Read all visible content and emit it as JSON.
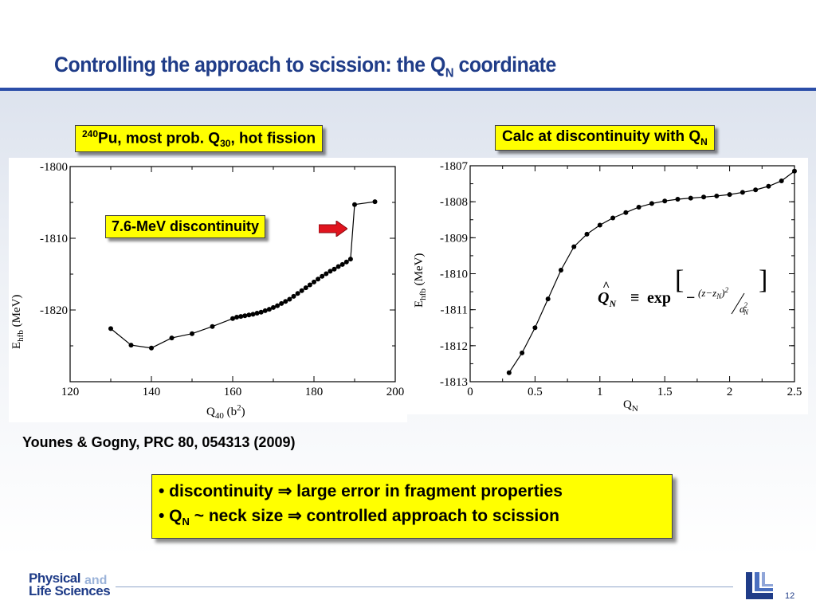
{
  "slide": {
    "title_prefix": "Controlling the approach to scission: the Q",
    "title_sub": "N",
    "title_suffix": " coordinate",
    "left_label": {
      "sup": "240",
      "text1": "Pu, most prob. Q",
      "sub": "30",
      "text2": ", hot fission"
    },
    "right_label": {
      "text": "Calc at discontinuity with Q",
      "sub": "N"
    },
    "callout": "7.6-MeV discontinuity",
    "citation": "Younes & Gogny, PRC 80, 054313 (2009)",
    "bullet1": {
      "text1": "• discontinuity ",
      "arrow": "⇒",
      "text2": " large error in fragment properties"
    },
    "bullet2": {
      "text1": "• Q",
      "sub": "N",
      "tilde": " ~ ",
      "text2": "neck size ",
      "arrow": "⇒",
      "text3": " controlled approach to scission"
    },
    "footer": {
      "logo_line1": "Physical",
      "logo_and": "and",
      "logo_line2": "Life Sciences",
      "page_number": "12"
    },
    "formula": {
      "lhs": "Q",
      "lhs_sub": "N",
      "equiv": "≡",
      "exp": "exp",
      "minus": "−",
      "num": "(z−z",
      "num_sub": "N",
      "num_close": ")",
      "num_pow": "2",
      "den": "a",
      "den_sub": "N",
      "den_pow": "2"
    },
    "colors": {
      "title": "#1f3c88",
      "highlight": "#ffff00",
      "arrow": "#e0141e",
      "rule": "#2b4ea8"
    }
  },
  "chart_data": [
    {
      "type": "line",
      "xlabel": "Q",
      "xlabel_sub": "40",
      "xlabel_unit": "(b",
      "xlabel_pow": "2",
      "xlabel_close": ")",
      "ylabel": "E",
      "ylabel_sub": "hfb",
      "ylabel_unit": "(MeV)",
      "xlim": [
        120,
        200
      ],
      "ylim": [
        -1830,
        -1800
      ],
      "xticks": [
        120,
        140,
        160,
        180,
        200
      ],
      "yticks": [
        -1800,
        -1810,
        -1820
      ],
      "grid": false,
      "x": [
        130,
        135,
        140,
        145,
        150,
        155,
        160,
        161,
        162,
        163,
        164,
        165,
        166,
        167,
        168,
        169,
        170,
        171,
        172,
        173,
        174,
        175,
        176,
        177,
        178,
        179,
        180,
        181,
        182,
        183,
        184,
        185,
        186,
        187,
        188,
        189,
        190,
        195
      ],
      "y": [
        -1822.6,
        -1824.9,
        -1825.3,
        -1823.9,
        -1823.3,
        -1822.3,
        -1821.2,
        -1821.0,
        -1820.9,
        -1820.8,
        -1820.7,
        -1820.6,
        -1820.45,
        -1820.3,
        -1820.1,
        -1819.9,
        -1819.65,
        -1819.4,
        -1819.1,
        -1818.8,
        -1818.5,
        -1818.1,
        -1817.7,
        -1817.3,
        -1816.9,
        -1816.5,
        -1816.1,
        -1815.7,
        -1815.3,
        -1814.95,
        -1814.6,
        -1814.3,
        -1813.95,
        -1813.65,
        -1813.3,
        -1812.9,
        -1805.3,
        -1804.9
      ]
    },
    {
      "type": "line",
      "xlabel": "Q",
      "xlabel_sub": "N",
      "ylabel": "E",
      "ylabel_sub": "hfb",
      "ylabel_unit": "(MeV)",
      "xlim": [
        0,
        2.5
      ],
      "ylim": [
        -1813,
        -1807
      ],
      "xticks": [
        0,
        0.5,
        1,
        1.5,
        2,
        2.5
      ],
      "xtick_labels": [
        "0",
        "0.5",
        "1",
        "1.5",
        "2",
        "2.5"
      ],
      "yticks": [
        -1807,
        -1808,
        -1809,
        -1810,
        -1811,
        -1812,
        -1813
      ],
      "grid": false,
      "x": [
        0.3,
        0.4,
        0.5,
        0.6,
        0.7,
        0.8,
        0.9,
        1.0,
        1.1,
        1.2,
        1.3,
        1.4,
        1.5,
        1.6,
        1.7,
        1.8,
        1.9,
        2.0,
        2.1,
        2.2,
        2.3,
        2.4,
        2.5
      ],
      "y": [
        -1812.75,
        -1812.2,
        -1811.5,
        -1810.7,
        -1809.9,
        -1809.25,
        -1808.9,
        -1808.65,
        -1808.45,
        -1808.3,
        -1808.15,
        -1808.05,
        -1807.98,
        -1807.93,
        -1807.9,
        -1807.87,
        -1807.84,
        -1807.8,
        -1807.74,
        -1807.67,
        -1807.57,
        -1807.42,
        -1807.15
      ]
    }
  ]
}
